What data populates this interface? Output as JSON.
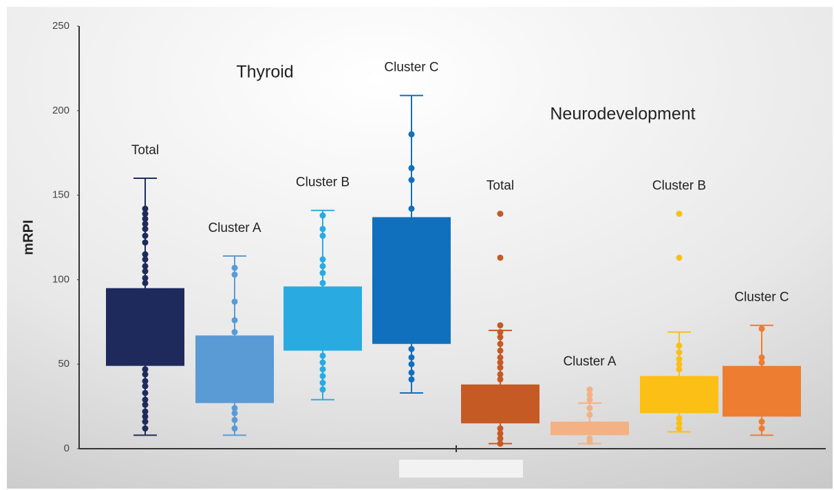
{
  "chart_data": {
    "type": "box",
    "y_label": "mRPI",
    "ylim": [
      0,
      250
    ],
    "yticks": [
      0,
      50,
      100,
      150,
      200,
      250
    ],
    "annotations": [
      "Thyroid",
      "Neurodevelopment"
    ],
    "boxes": [
      {
        "name": "Total",
        "color": "#1f2a5c",
        "low": 8,
        "q1": 49,
        "q3": 95,
        "high": 160,
        "points": [
          142,
          139,
          136,
          133,
          130,
          126,
          122,
          115,
          112,
          108,
          105,
          101,
          98,
          47,
          44,
          40,
          37,
          33,
          29,
          26,
          22,
          19,
          16,
          12
        ]
      },
      {
        "name": "Cluster A",
        "color": "#5b9bd5",
        "low": 8,
        "q1": 27,
        "q3": 67,
        "high": 114,
        "points": [
          107,
          103,
          87,
          76,
          69,
          24,
          21,
          17,
          12
        ]
      },
      {
        "name": "Cluster B",
        "color": "#29abe2",
        "low": 29,
        "q1": 58,
        "q3": 96,
        "high": 141,
        "points": [
          138,
          130,
          126,
          112,
          108,
          104,
          98,
          55,
          51,
          47,
          43,
          39,
          35
        ]
      },
      {
        "name": "Cluster C",
        "color": "#1170bd",
        "low": 33,
        "q1": 62,
        "q3": 137,
        "high": 209,
        "points": [
          186,
          166,
          159,
          142,
          59,
          54,
          50,
          45,
          41
        ]
      },
      {
        "name": "Total",
        "color": "#c55a24",
        "low": 3,
        "q1": 15,
        "q3": 38,
        "high": 70,
        "points": [
          139,
          113,
          73,
          69,
          66,
          62,
          58,
          54,
          51,
          48,
          44,
          41,
          12,
          9,
          6,
          3
        ]
      },
      {
        "name": "Cluster A",
        "color": "#f4b183",
        "low": 3,
        "q1": 8,
        "q3": 16,
        "high": 27,
        "points": [
          35,
          32,
          29,
          24,
          20,
          6,
          4
        ]
      },
      {
        "name": "Cluster B",
        "color": "#fbbf16",
        "low": 10,
        "q1": 21,
        "q3": 43,
        "high": 69,
        "points": [
          139,
          113,
          61,
          57,
          53,
          50,
          47,
          18,
          15,
          12
        ]
      },
      {
        "name": "Cluster C",
        "color": "#ed7d31",
        "low": 8,
        "q1": 19,
        "q3": 49,
        "high": 73,
        "points": [
          71,
          54,
          51,
          16,
          12
        ]
      }
    ]
  }
}
